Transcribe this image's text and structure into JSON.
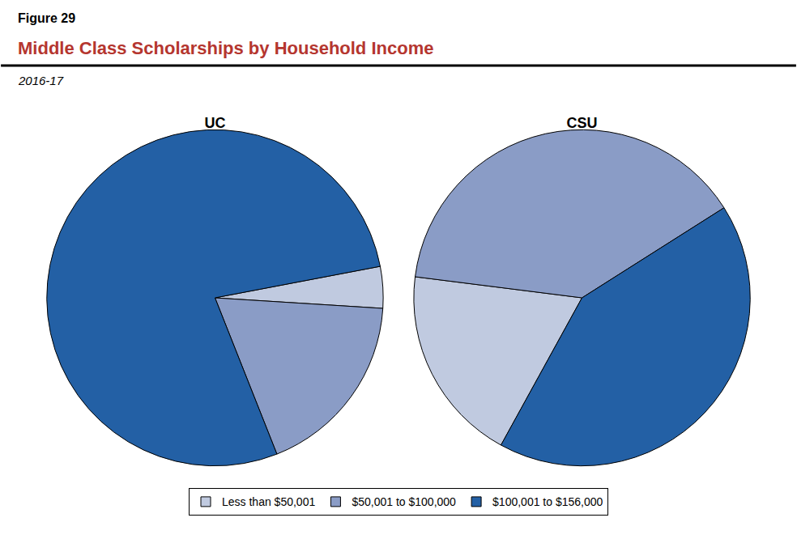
{
  "header": {
    "figure": "Figure 29",
    "title": "Middle Class Scholarships by Household Income",
    "subtitle": "2016-17"
  },
  "chart_data": [
    {
      "type": "pie",
      "title": "UC",
      "categories": [
        "Less than $50,001",
        "$50,001 to $100,000",
        "$100,001 to $156,000"
      ],
      "values": [
        4,
        18,
        78
      ],
      "colors": [
        "#c0cae0",
        "#8a9cc6",
        "#2360a5"
      ],
      "legend": "bottom"
    },
    {
      "type": "pie",
      "title": "CSU",
      "categories": [
        "Less than $50,001",
        "$50,001 to $100,000",
        "$100,001 to $156,000"
      ],
      "values": [
        19,
        39,
        42
      ],
      "colors": [
        "#c0cae0",
        "#8a9cc6",
        "#2360a5"
      ],
      "legend": "bottom"
    }
  ]
}
